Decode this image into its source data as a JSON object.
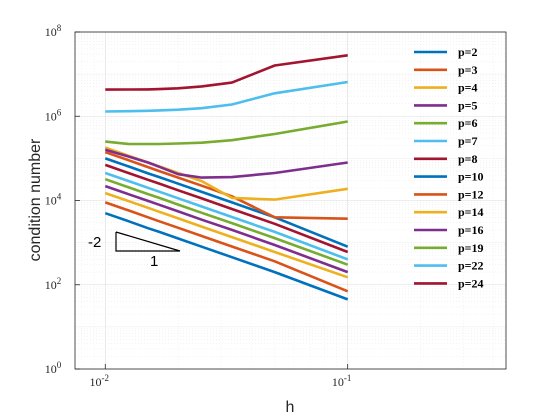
{
  "chart_data": {
    "type": "line",
    "xscale": "log",
    "yscale": "log",
    "xlim": [
      0.0075,
      0.45
    ],
    "ylim": [
      1,
      100000000
    ],
    "xlabel": "h",
    "ylabel": "condition number",
    "grid": true,
    "legend_position": "top-right",
    "x": [
      0.01,
      0.0125,
      0.015,
      0.0167,
      0.02,
      0.025,
      0.0333,
      0.05,
      0.1
    ],
    "xticks": [
      {
        "base": "10",
        "exp": "-2"
      },
      {
        "base": "10",
        "exp": "-1"
      }
    ],
    "yticks": [
      {
        "base": "10",
        "exp": "0"
      },
      {
        "base": "10",
        "exp": "2"
      },
      {
        "base": "10",
        "exp": "4"
      },
      {
        "base": "10",
        "exp": "6"
      },
      {
        "base": "10",
        "exp": "8"
      }
    ],
    "slope_triangle": {
      "slope_label": "-2",
      "run_label": "1"
    },
    "series": [
      {
        "name": "p=2",
        "color": "#0072BD",
        "values": [
          5000,
          3200,
          2200,
          1800,
          1250,
          800,
          450,
          200,
          45
        ]
      },
      {
        "name": "p=3",
        "color": "#D95319",
        "values": [
          9000,
          5800,
          4000,
          3200,
          2250,
          1440,
          810,
          360,
          70
        ]
      },
      {
        "name": "p=4",
        "color": "#EDB120",
        "values": [
          15000,
          9600,
          6700,
          5400,
          3750,
          2400,
          1350,
          600,
          150
        ]
      },
      {
        "name": "p=5",
        "color": "#7E2F8E",
        "values": [
          22000,
          14000,
          9800,
          7900,
          5500,
          3500,
          2000,
          880,
          200
        ]
      },
      {
        "name": "p=6",
        "color": "#77AC30",
        "values": [
          32000,
          20500,
          14200,
          11500,
          8000,
          5100,
          2900,
          1280,
          300
        ]
      },
      {
        "name": "p=7",
        "color": "#4DBEEE",
        "values": [
          45000,
          28800,
          20000,
          16200,
          11250,
          7200,
          4050,
          1800,
          400
        ]
      },
      {
        "name": "p=8",
        "color": "#A2142F",
        "values": [
          70000,
          44800,
          31000,
          25200,
          17500,
          11200,
          6300,
          2800,
          600
        ]
      },
      {
        "name": "p=10",
        "color": "#0072BD",
        "values": [
          100000,
          64000,
          44000,
          36000,
          25000,
          16000,
          9000,
          4000,
          800
        ]
      },
      {
        "name": "p=12",
        "color": "#D95319",
        "values": [
          140000,
          90000,
          62000,
          50000,
          35000,
          22400,
          12600,
          4000,
          3700
        ]
      },
      {
        "name": "p=14",
        "color": "#EDB120",
        "values": [
          180000,
          115000,
          80000,
          65000,
          45000,
          28800,
          11500,
          10500,
          19000
        ]
      },
      {
        "name": "p=16",
        "color": "#7E2F8E",
        "values": [
          160000,
          110000,
          80000,
          63000,
          42000,
          35000,
          36000,
          45000,
          80000
        ]
      },
      {
        "name": "p=19",
        "color": "#77AC30",
        "values": [
          250000,
          220000,
          220000,
          220000,
          225000,
          235000,
          270000,
          380000,
          750000
        ]
      },
      {
        "name": "p=22",
        "color": "#4DBEEE",
        "values": [
          1300000,
          1320000,
          1350000,
          1380000,
          1430000,
          1550000,
          1900000,
          3500000,
          6500000
        ]
      },
      {
        "name": "p=24",
        "color": "#A2142F",
        "values": [
          4300000,
          4320000,
          4350000,
          4400000,
          4600000,
          5100000,
          6300000,
          16000000,
          28000000
        ]
      }
    ]
  }
}
